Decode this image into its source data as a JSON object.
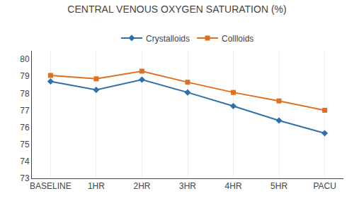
{
  "chart_data": {
    "type": "line",
    "title": "CENTRAL VENOUS OXYGEN SATURATION (%)",
    "categories": [
      "BASELINE",
      "1HR",
      "2HR",
      "3HR",
      "4HR",
      "5HR",
      "PACU"
    ],
    "series": [
      {
        "name": "Crystalloids",
        "color": "#2e6fac",
        "marker": "diamond",
        "values": [
          78.7,
          78.2,
          78.8,
          78.05,
          77.25,
          76.4,
          75.65
        ]
      },
      {
        "name": "Collloids",
        "color": "#e07020",
        "marker": "square",
        "values": [
          79.05,
          78.85,
          79.3,
          78.65,
          78.05,
          77.55,
          77.0
        ]
      }
    ],
    "ylim": [
      73,
      80.5
    ],
    "yticks": [
      73,
      74,
      75,
      76,
      77,
      78,
      79,
      80
    ],
    "grid": "x",
    "legend": "top"
  }
}
